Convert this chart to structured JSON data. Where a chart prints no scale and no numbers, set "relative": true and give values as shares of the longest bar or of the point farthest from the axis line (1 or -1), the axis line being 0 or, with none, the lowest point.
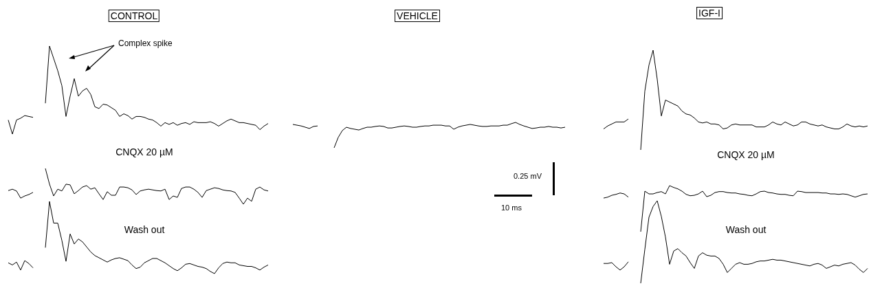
{
  "chart_data": [
    {
      "type": "line",
      "title": "CONTROL",
      "relative": true,
      "legend": false,
      "annotations": [
        "Complex spike"
      ],
      "categories": [
        null,
        null,
        null,
        null,
        null,
        null,
        null,
        null,
        null,
        null,
        null,
        null,
        null,
        null,
        null,
        null,
        null,
        null,
        null,
        null,
        null,
        null,
        null,
        null,
        null,
        null,
        null,
        null,
        null,
        null,
        null,
        null,
        null,
        null,
        null,
        null,
        null,
        null,
        null,
        null,
        null,
        null,
        null,
        null,
        null,
        null,
        null,
        null,
        null,
        null,
        null,
        null,
        null,
        null,
        null,
        null,
        null,
        null,
        null,
        null,
        null,
        null,
        null,
        null
      ],
      "series": [
        {
          "color": "#000000",
          "values": [
            0.16,
            0,
            0.16,
            0.18,
            0.21,
            0.2,
            0.19,
            null,
            null,
            null,
            null,
            null,
            null,
            null,
            null,
            null,
            null,
            null,
            null,
            null,
            null,
            null,
            null,
            null,
            null,
            null,
            null,
            null,
            null,
            null,
            null,
            null,
            null,
            null,
            null,
            null,
            null,
            null,
            null,
            null,
            null,
            null,
            null,
            null,
            null,
            null,
            null,
            null,
            null,
            null,
            null,
            null,
            null,
            null,
            null,
            null,
            null,
            null,
            null,
            null,
            null,
            null,
            null,
            null
          ]
        },
        {
          "color": "#000000",
          "values": [
            null,
            null,
            null,
            null,
            null,
            null,
            null,
            null,
            null,
            0.35,
            1.0,
            0.86,
            0.72,
            0.55,
            0.2,
            0.43,
            0.63,
            0.43,
            0.49,
            0.52,
            0.45,
            0.31,
            0.29,
            0.34,
            0.33,
            0.3,
            0.27,
            0.2,
            0.23,
            0.21,
            0.17,
            0.2,
            0.2,
            0.19,
            0.17,
            0.16,
            0.13,
            0.09,
            0.13,
            0.11,
            0.13,
            0.1,
            0.12,
            0.13,
            0.11,
            0.14,
            0.13,
            0.13,
            0.13,
            0.14,
            0.12,
            0.09,
            0.12,
            0.15,
            0.17,
            0.15,
            0.13,
            0.13,
            0.12,
            0.11,
            0.1,
            0.05,
            0.09,
            0.12
          ]
        }
      ]
    },
    {
      "type": "line",
      "title": "CNQX 20 µM",
      "relative": true,
      "legend": false,
      "categories": [
        null,
        null,
        null,
        null,
        null,
        null,
        null,
        null,
        null,
        null,
        null,
        null,
        null,
        null,
        null,
        null,
        null,
        null,
        null,
        null,
        null,
        null,
        null,
        null,
        null,
        null,
        null,
        null,
        null,
        null,
        null,
        null,
        null,
        null,
        null,
        null,
        null,
        null,
        null,
        null,
        null,
        null,
        null,
        null,
        null,
        null,
        null,
        null,
        null,
        null,
        null,
        null,
        null,
        null,
        null,
        null,
        null,
        null,
        null,
        null,
        null,
        null,
        null,
        null
      ],
      "series": [
        {
          "color": "#000000",
          "values": [
            0.38,
            0.42,
            0.37,
            0.17,
            0.23,
            0.27,
            0.33,
            null,
            null,
            null,
            null,
            null,
            null,
            null,
            null,
            null,
            null,
            null,
            null,
            null,
            null,
            null,
            null,
            null,
            null,
            null,
            null,
            null,
            null,
            null,
            null,
            null,
            null,
            null,
            null,
            null,
            null,
            null,
            null,
            null,
            null,
            null,
            null,
            null,
            null,
            null,
            null,
            null,
            null,
            null,
            null,
            null,
            null,
            null,
            null,
            null,
            null,
            null,
            null,
            null,
            null,
            null,
            null,
            null
          ]
        },
        {
          "color": "#000000",
          "values": [
            null,
            null,
            null,
            null,
            null,
            null,
            null,
            null,
            null,
            1.0,
            0.56,
            0.23,
            0.42,
            0.37,
            0.56,
            0.54,
            0.29,
            0.38,
            0.48,
            0.52,
            0.42,
            0.46,
            0.29,
            0.13,
            0.35,
            0.25,
            0.25,
            0.48,
            0.48,
            0.46,
            0.4,
            0.27,
            0.37,
            0.4,
            0.42,
            0.4,
            0.38,
            0.37,
            0.42,
            0.13,
            0.23,
            0.19,
            0.44,
            0.48,
            0.48,
            0.42,
            0.33,
            0.19,
            0.38,
            0.42,
            0.46,
            0.44,
            0.4,
            0.38,
            0.37,
            0.33,
            0.17,
            0,
            0.17,
            0.08,
            0.42,
            0.48,
            0.4,
            0.37
          ]
        }
      ]
    },
    {
      "type": "line",
      "title": "Wash out",
      "relative": true,
      "legend": false,
      "categories": [
        null,
        null,
        null,
        null,
        null,
        null,
        null,
        null,
        null,
        null,
        null,
        null,
        null,
        null,
        null,
        null,
        null,
        null,
        null,
        null,
        null,
        null,
        null,
        null,
        null,
        null,
        null,
        null,
        null,
        null,
        null,
        null,
        null,
        null,
        null,
        null,
        null,
        null,
        null,
        null,
        null,
        null,
        null,
        null,
        null,
        null,
        null,
        null,
        null,
        null,
        null,
        null,
        null,
        null,
        null,
        null,
        null,
        null,
        null,
        null,
        null,
        null,
        null,
        null
      ],
      "series": [
        {
          "color": "#000000",
          "values": [
            0.15,
            0.12,
            0.16,
            0.05,
            0.18,
            0.14,
            0.08,
            null,
            null,
            null,
            null,
            null,
            null,
            null,
            null,
            null,
            null,
            null,
            null,
            null,
            null,
            null,
            null,
            null,
            null,
            null,
            null,
            null,
            null,
            null,
            null,
            null,
            null,
            null,
            null,
            null,
            null,
            null,
            null,
            null,
            null,
            null,
            null,
            null,
            null,
            null,
            null,
            null,
            null,
            null,
            null,
            null,
            null,
            null,
            null,
            null,
            null,
            null,
            null,
            null,
            null,
            null,
            null,
            null
          ]
        },
        {
          "color": "#000000",
          "values": [
            null,
            null,
            null,
            null,
            null,
            null,
            null,
            null,
            null,
            0.36,
            1.0,
            0.7,
            0.7,
            0.46,
            0.17,
            0.55,
            0.41,
            0.48,
            0.44,
            0.37,
            0.3,
            0.25,
            0.22,
            0.19,
            0.16,
            0.19,
            0.21,
            0.22,
            0.2,
            0.18,
            0.12,
            0.07,
            0.09,
            0.15,
            0.18,
            0.21,
            0.21,
            0.18,
            0.15,
            0.11,
            0.07,
            0.04,
            0.08,
            0.13,
            0.14,
            0.12,
            0.1,
            0.09,
            0.07,
            0.03,
            0,
            0.08,
            0.14,
            0.16,
            0.15,
            0.15,
            0.12,
            0.11,
            0.1,
            0.1,
            0.08,
            0.05,
            0.09,
            0.12
          ]
        }
      ]
    },
    {
      "type": "line",
      "title": "VEHICLE",
      "relative": true,
      "legend": false,
      "annotations": [
        "0.25 mV",
        "10 ms"
      ],
      "categories": [
        null,
        null,
        null,
        null,
        null,
        null,
        null,
        null,
        null,
        null,
        null,
        null,
        null,
        null,
        null,
        null,
        null,
        null,
        null,
        null,
        null,
        null,
        null,
        null,
        null,
        null,
        null,
        null,
        null,
        null,
        null,
        null,
        null,
        null,
        null,
        null,
        null,
        null,
        null,
        null,
        null,
        null,
        null,
        null,
        null,
        null,
        null,
        null,
        null,
        null,
        null,
        null,
        null,
        null,
        null,
        null,
        null,
        null,
        null,
        null,
        null,
        null,
        null,
        null,
        null,
        null,
        null
      ],
      "series": [
        {
          "color": "#000000",
          "values": [
            0.92,
            0.89,
            0.86,
            0.81,
            0.76,
            0.84,
            0.86,
            null,
            null,
            null,
            null,
            null,
            null,
            null,
            null,
            null,
            null,
            null,
            null,
            null,
            null,
            null,
            null,
            null,
            null,
            null,
            null,
            null,
            null,
            null,
            null,
            null,
            null,
            null,
            null,
            null,
            null,
            null,
            null,
            null,
            null,
            null,
            null,
            null,
            null,
            null,
            null,
            null,
            null,
            null,
            null,
            null,
            null,
            null,
            null,
            null,
            null,
            null,
            null,
            null,
            null,
            null,
            null,
            null,
            null,
            null,
            null
          ]
        },
        {
          "color": "#000000",
          "values": [
            null,
            null,
            null,
            null,
            null,
            null,
            null,
            null,
            null,
            null,
            0,
            0.41,
            0.68,
            0.81,
            0.76,
            0.73,
            0.7,
            0.76,
            0.81,
            0.81,
            0.84,
            0.86,
            0.84,
            0.78,
            0.78,
            0.81,
            0.84,
            0.86,
            0.84,
            0.81,
            0.81,
            0.84,
            0.86,
            0.86,
            0.89,
            0.89,
            0.89,
            0.86,
            0.86,
            0.73,
            0.81,
            0.86,
            0.89,
            0.92,
            0.89,
            0.86,
            0.84,
            0.84,
            0.86,
            0.86,
            0.86,
            0.89,
            0.89,
            0.95,
            1.0,
            0.92,
            0.86,
            0.81,
            0.76,
            0.78,
            0.81,
            0.81,
            0.84,
            0.81,
            0.81,
            0.78,
            0.81
          ]
        }
      ]
    },
    {
      "type": "line",
      "title": "IGF-I",
      "relative": true,
      "legend": false,
      "categories": [
        null,
        null,
        null,
        null,
        null,
        null,
        null,
        null,
        null,
        null,
        null,
        null,
        null,
        null,
        null,
        null,
        null,
        null,
        null,
        null,
        null,
        null,
        null,
        null,
        null,
        null,
        null,
        null,
        null,
        null,
        null,
        null,
        null,
        null,
        null,
        null,
        null,
        null,
        null,
        null,
        null,
        null,
        null,
        null,
        null,
        null,
        null,
        null,
        null,
        null,
        null,
        null,
        null,
        null,
        null,
        null,
        null,
        null,
        null,
        null,
        null,
        null,
        null,
        null,
        null
      ],
      "series": [
        {
          "color": "#000000",
          "values": [
            0.21,
            0.24,
            0.26,
            0.28,
            0.28,
            0.28,
            0.31,
            null,
            null,
            null,
            null,
            null,
            null,
            null,
            null,
            null,
            null,
            null,
            null,
            null,
            null,
            null,
            null,
            null,
            null,
            null,
            null,
            null,
            null,
            null,
            null,
            null,
            null,
            null,
            null,
            null,
            null,
            null,
            null,
            null,
            null,
            null,
            null,
            null,
            null,
            null,
            null,
            null,
            null,
            null,
            null,
            null,
            null,
            null,
            null,
            null,
            null,
            null,
            null,
            null,
            null,
            null,
            null,
            null,
            null
          ]
        },
        {
          "color": "#000000",
          "values": [
            null,
            null,
            null,
            null,
            null,
            null,
            null,
            null,
            null,
            0,
            0.59,
            0.85,
            1.0,
            0.71,
            0.34,
            0.5,
            0.48,
            0.46,
            0.44,
            0.39,
            0.36,
            0.35,
            0.32,
            0.28,
            0.27,
            0.28,
            0.26,
            0.26,
            0.25,
            0.21,
            0.22,
            0.25,
            0.26,
            0.25,
            0.25,
            0.25,
            0.25,
            0.23,
            0.23,
            0.23,
            0.25,
            0.28,
            0.26,
            0.25,
            0.28,
            0.26,
            0.24,
            0.25,
            0.28,
            0.28,
            0.26,
            0.25,
            0.24,
            0.25,
            0.23,
            0.22,
            0.21,
            0.21,
            0.23,
            0.26,
            0.24,
            0.23,
            0.24,
            0.23,
            0.24
          ]
        }
      ]
    },
    {
      "type": "line",
      "title": "CNQX 20 µM",
      "relative": true,
      "legend": false,
      "categories": [
        null,
        null,
        null,
        null,
        null,
        null,
        null,
        null,
        null,
        null,
        null,
        null,
        null,
        null,
        null,
        null,
        null,
        null,
        null,
        null,
        null,
        null,
        null,
        null,
        null,
        null,
        null,
        null,
        null,
        null,
        null,
        null,
        null,
        null,
        null,
        null,
        null,
        null,
        null,
        null,
        null,
        null,
        null,
        null,
        null,
        null,
        null,
        null,
        null,
        null,
        null,
        null,
        null,
        null,
        null,
        null,
        null,
        null,
        null,
        null,
        null,
        null,
        null,
        null,
        null
      ],
      "series": [
        {
          "color": "#000000",
          "values": [
            0.73,
            0.75,
            0.79,
            0.81,
            0.84,
            0.82,
            0.75,
            null,
            null,
            null,
            null,
            null,
            null,
            null,
            null,
            null,
            null,
            null,
            null,
            null,
            null,
            null,
            null,
            null,
            null,
            null,
            null,
            null,
            null,
            null,
            null,
            null,
            null,
            null,
            null,
            null,
            null,
            null,
            null,
            null,
            null,
            null,
            null,
            null,
            null,
            null,
            null,
            null,
            null,
            null,
            null,
            null,
            null,
            null,
            null,
            null,
            null,
            null,
            null,
            null,
            null,
            null,
            null,
            null,
            null
          ]
        },
        {
          "color": "#000000",
          "values": [
            null,
            null,
            null,
            null,
            null,
            null,
            null,
            null,
            null,
            0,
            0.88,
            0.82,
            0.82,
            0.85,
            0.87,
            0.82,
            1.0,
            0.96,
            0.93,
            0.88,
            0.81,
            0.78,
            0.79,
            0.82,
            0.88,
            0.76,
            0.79,
            0.85,
            0.87,
            0.87,
            0.85,
            0.84,
            0.84,
            0.82,
            0.81,
            0.79,
            0.78,
            0.82,
            0.87,
            0.88,
            0.85,
            0.84,
            0.82,
            0.81,
            0.81,
            0.79,
            0.78,
            0.88,
            0.87,
            0.85,
            0.85,
            0.85,
            0.85,
            0.84,
            0.84,
            0.82,
            0.82,
            0.81,
            0.82,
            0.81,
            0.78,
            0.75,
            0.78,
            0.81,
            0.82
          ]
        }
      ]
    },
    {
      "type": "line",
      "title": "Wash out",
      "relative": true,
      "legend": false,
      "categories": [
        null,
        null,
        null,
        null,
        null,
        null,
        null,
        null,
        null,
        null,
        null,
        null,
        null,
        null,
        null,
        null,
        null,
        null,
        null,
        null,
        null,
        null,
        null,
        null,
        null,
        null,
        null,
        null,
        null,
        null,
        null,
        null,
        null,
        null,
        null,
        null,
        null,
        null,
        null,
        null,
        null,
        null,
        null,
        null,
        null,
        null,
        null,
        null,
        null,
        null,
        null,
        null,
        null,
        null,
        null,
        null,
        null,
        null,
        null,
        null,
        null,
        null,
        null,
        null,
        null
      ],
      "series": [
        {
          "color": "#000000",
          "values": [
            0.24,
            0.24,
            0.25,
            0.2,
            0.16,
            0.2,
            0.26,
            null,
            null,
            null,
            null,
            null,
            null,
            null,
            null,
            null,
            null,
            null,
            null,
            null,
            null,
            null,
            null,
            null,
            null,
            null,
            null,
            null,
            null,
            null,
            null,
            null,
            null,
            null,
            null,
            null,
            null,
            null,
            null,
            null,
            null,
            null,
            null,
            null,
            null,
            null,
            null,
            null,
            null,
            null,
            null,
            null,
            null,
            null,
            null,
            null,
            null,
            null,
            null,
            null,
            null,
            null,
            null,
            null,
            null
          ]
        },
        {
          "color": "#000000",
          "values": [
            null,
            null,
            null,
            null,
            null,
            null,
            null,
            null,
            null,
            0,
            0.41,
            0.8,
            0.93,
            1.0,
            0.81,
            0.56,
            0.23,
            0.39,
            0.42,
            0.37,
            0.33,
            0.25,
            0.18,
            0.33,
            0.37,
            0.34,
            0.33,
            0.33,
            0.3,
            0.23,
            0.13,
            0.18,
            0.23,
            0.25,
            0.23,
            0.23,
            0.24,
            0.26,
            0.27,
            0.27,
            0.28,
            0.29,
            0.28,
            0.28,
            0.27,
            0.26,
            0.25,
            0.24,
            0.23,
            0.22,
            0.21,
            0.23,
            0.24,
            0.22,
            0.18,
            0.2,
            0.22,
            0.21,
            0.23,
            0.24,
            0.25,
            0.22,
            0.17,
            0.13,
            0.18
          ]
        }
      ]
    }
  ]
}
